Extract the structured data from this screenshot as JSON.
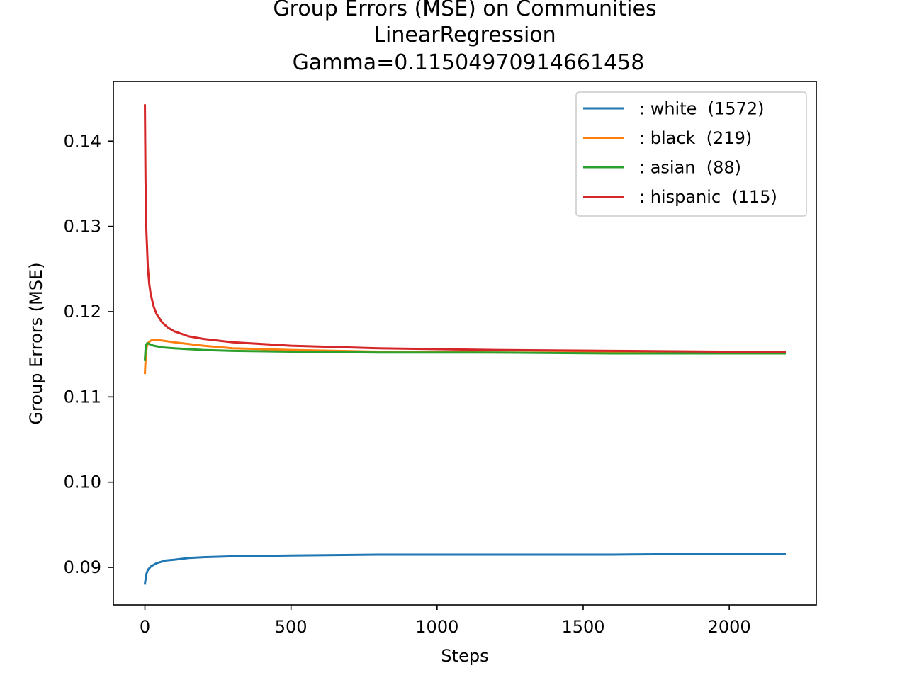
{
  "chart_data": {
    "type": "line",
    "title_lines": [
      "Group Errors (MSE) on Communities",
      "LinearRegression",
      "Gamma=0.11504970914661458"
    ],
    "xlabel": "Steps",
    "ylabel": "Group Errors (MSE)",
    "xlim": [
      -108,
      2298
    ],
    "ylim": [
      0.0856,
      0.147
    ],
    "xticks": [
      0,
      500,
      1000,
      1500,
      2000
    ],
    "xtick_labels": [
      "0",
      "500",
      "1000",
      "1500",
      "2000"
    ],
    "yticks": [
      0.09,
      0.1,
      0.11,
      0.12,
      0.13,
      0.14
    ],
    "ytick_labels": [
      "0.09",
      "0.10",
      "0.11",
      "0.12",
      "0.13",
      "0.14"
    ],
    "grid": false,
    "legend_position": "upper right",
    "series": [
      {
        "name": ": white  (1572)",
        "color": "#1f77b4",
        "x": [
          0,
          5,
          10,
          20,
          40,
          70,
          100,
          150,
          200,
          300,
          500,
          800,
          1200,
          1600,
          2000,
          2190
        ],
        "y": [
          0.0881,
          0.0892,
          0.0897,
          0.0901,
          0.0905,
          0.0908,
          0.0909,
          0.0911,
          0.0912,
          0.0913,
          0.0914,
          0.0915,
          0.0915,
          0.0915,
          0.0916,
          0.0916
        ]
      },
      {
        "name": ": black  (219)",
        "color": "#ff7f0e",
        "x": [
          0,
          3,
          6,
          10,
          20,
          35,
          60,
          100,
          200,
          300,
          500,
          800,
          1200,
          1600,
          2000,
          2190
        ],
        "y": [
          0.1128,
          0.1148,
          0.1158,
          0.1163,
          0.1166,
          0.1167,
          0.1166,
          0.1164,
          0.116,
          0.1157,
          0.1155,
          0.1153,
          0.1152,
          0.1152,
          0.1152,
          0.1152
        ]
      },
      {
        "name": ": asian  (88)",
        "color": "#2ca02c",
        "x": [
          0,
          2,
          4,
          8,
          15,
          30,
          60,
          100,
          200,
          300,
          500,
          800,
          1200,
          1600,
          2000,
          2190
        ],
        "y": [
          0.1144,
          0.1155,
          0.1161,
          0.1163,
          0.1162,
          0.116,
          0.1158,
          0.1157,
          0.1155,
          0.1154,
          0.1153,
          0.1152,
          0.1152,
          0.1151,
          0.1151,
          0.1151
        ]
      },
      {
        "name": ": hispanic  (115)",
        "color": "#d62728",
        "x": [
          0,
          2,
          5,
          10,
          15,
          20,
          30,
          40,
          60,
          80,
          100,
          150,
          200,
          300,
          500,
          800,
          1200,
          1600,
          2000,
          2190
        ],
        "y": [
          0.1442,
          0.1355,
          0.1295,
          0.1252,
          0.1232,
          0.122,
          0.1206,
          0.1197,
          0.1187,
          0.1181,
          0.1177,
          0.1171,
          0.1168,
          0.1164,
          0.116,
          0.1157,
          0.1155,
          0.1154,
          0.1153,
          0.1153
        ]
      }
    ]
  }
}
